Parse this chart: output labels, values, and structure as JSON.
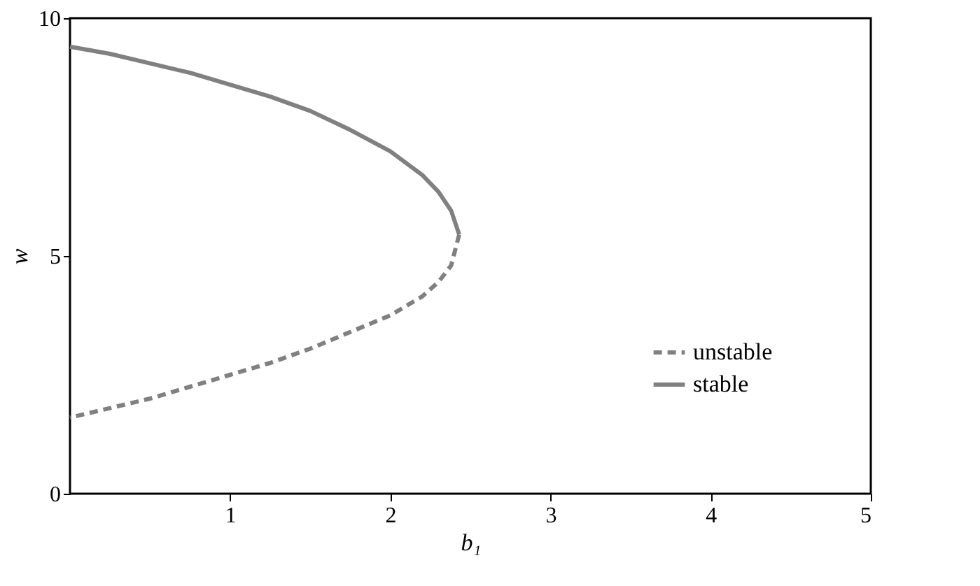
{
  "chart_data": {
    "type": "line",
    "xlabel": "b₁",
    "ylabel": "w",
    "xlim": [
      0,
      5
    ],
    "ylim": [
      0,
      10
    ],
    "xticks": [
      1,
      2,
      3,
      4,
      5
    ],
    "yticks": [
      0,
      5,
      10
    ],
    "grid": false,
    "legend": "bottom right",
    "marker": "none",
    "series": [
      {
        "name": "unstable",
        "color": "#808080",
        "line_style": "dashed",
        "x": [
          2.43,
          2.38,
          2.3,
          2.2,
          2.0,
          1.75,
          1.5,
          1.25,
          1.0,
          0.75,
          0.5,
          0.25,
          0.0
        ],
        "values": [
          5.45,
          4.8,
          4.45,
          4.15,
          3.75,
          3.4,
          3.05,
          2.75,
          2.5,
          2.25,
          2.0,
          1.8,
          1.6
        ]
      },
      {
        "name": "stable",
        "color": "#808080",
        "line_style": "solid",
        "x": [
          0.0,
          0.25,
          0.5,
          0.75,
          1.0,
          1.25,
          1.5,
          1.75,
          2.0,
          2.2,
          2.3,
          2.38,
          2.43
        ],
        "values": [
          9.4,
          9.25,
          9.05,
          8.85,
          8.6,
          8.35,
          8.05,
          7.65,
          7.2,
          6.7,
          6.35,
          5.95,
          5.45
        ]
      }
    ]
  }
}
